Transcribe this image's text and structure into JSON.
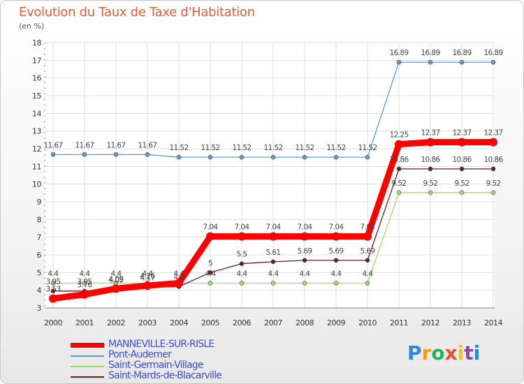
{
  "chart_data": {
    "type": "line",
    "title": "Evolution du Taux de Taxe d'Habitation",
    "unit_label": "(en %)",
    "x": [
      "2000",
      "2001",
      "2002",
      "2003",
      "2004",
      "2005",
      "2006",
      "2007",
      "2008",
      "2009",
      "2010",
      "2011",
      "2012",
      "2013",
      "2014"
    ],
    "ylim": [
      3,
      18
    ],
    "yticks": [
      3,
      4,
      5,
      6,
      7,
      8,
      9,
      10,
      11,
      12,
      13,
      14,
      15,
      16,
      17,
      18
    ],
    "grid": true,
    "legend_position": "bottom-left",
    "series": [
      {
        "name": "MANNEVILLE-SUR-RISLE",
        "color": "#ff0000",
        "values": [
          3.53,
          3.76,
          4.09,
          4.26,
          4.4,
          7.04,
          7.04,
          7.04,
          7.04,
          7.04,
          7.04,
          12.25,
          12.37,
          12.37,
          12.37
        ],
        "labels": [
          "3.53",
          "3.76",
          "4.09",
          "4.26",
          "4.4",
          "7.04",
          "7.04",
          "7.04",
          "7.04",
          "7.04",
          "7.04",
          "12.25",
          "12.37",
          "12.37",
          "12.37"
        ]
      },
      {
        "name": "Pont-Audemer",
        "color": "#5b9bd5",
        "values": [
          11.67,
          11.67,
          11.67,
          11.67,
          11.52,
          11.52,
          11.52,
          11.52,
          11.52,
          11.52,
          11.52,
          16.89,
          16.89,
          16.89,
          16.89
        ],
        "labels": [
          "11.67",
          "11.67",
          "11.67",
          "11.67",
          "11.52",
          "11.52",
          "11.52",
          "11.52",
          "11.52",
          "11.52",
          "11.52",
          "16.89",
          "16.89",
          "16.89",
          "16.89"
        ]
      },
      {
        "name": "Saint-Germain-Village",
        "color": "#99dd66",
        "values": [
          4.4,
          4.4,
          4.4,
          4.4,
          4.4,
          4.4,
          4.4,
          4.4,
          4.4,
          4.4,
          4.4,
          9.52,
          9.52,
          9.52,
          9.52
        ],
        "labels": [
          "4.4",
          "4.4",
          "4.4",
          "4.4",
          "4.4",
          "4.4",
          "4.4",
          "4.4",
          "4.4",
          "4.4",
          "4.4",
          "9.52",
          "9.52",
          "9.52",
          "9.52"
        ]
      },
      {
        "name": "Saint-Mards-de-Blacarville",
        "color": "#6b1f1f",
        "values": [
          3.95,
          3.95,
          4.05,
          4.17,
          4.2,
          5,
          5.5,
          5.61,
          5.69,
          5.69,
          5.69,
          10.86,
          10.86,
          10.86,
          10.86
        ],
        "labels": [
          "3.95",
          "3.95",
          "4.05",
          "4.17",
          "4.2",
          "5",
          "5.5",
          "5.61",
          "5.69",
          "5.69",
          "5.69",
          "10.86",
          "10.86",
          "10.86",
          "10.86"
        ]
      }
    ]
  },
  "logo": {
    "text": "Proxiti",
    "letters": [
      "P",
      "r",
      "o",
      "x",
      "i",
      "t",
      "i"
    ],
    "colors": [
      "#2e86de",
      "#f39c12",
      "#27ae60",
      "#e74c3c",
      "#f1c40f",
      "#8e44ad",
      "#2e86de"
    ]
  }
}
